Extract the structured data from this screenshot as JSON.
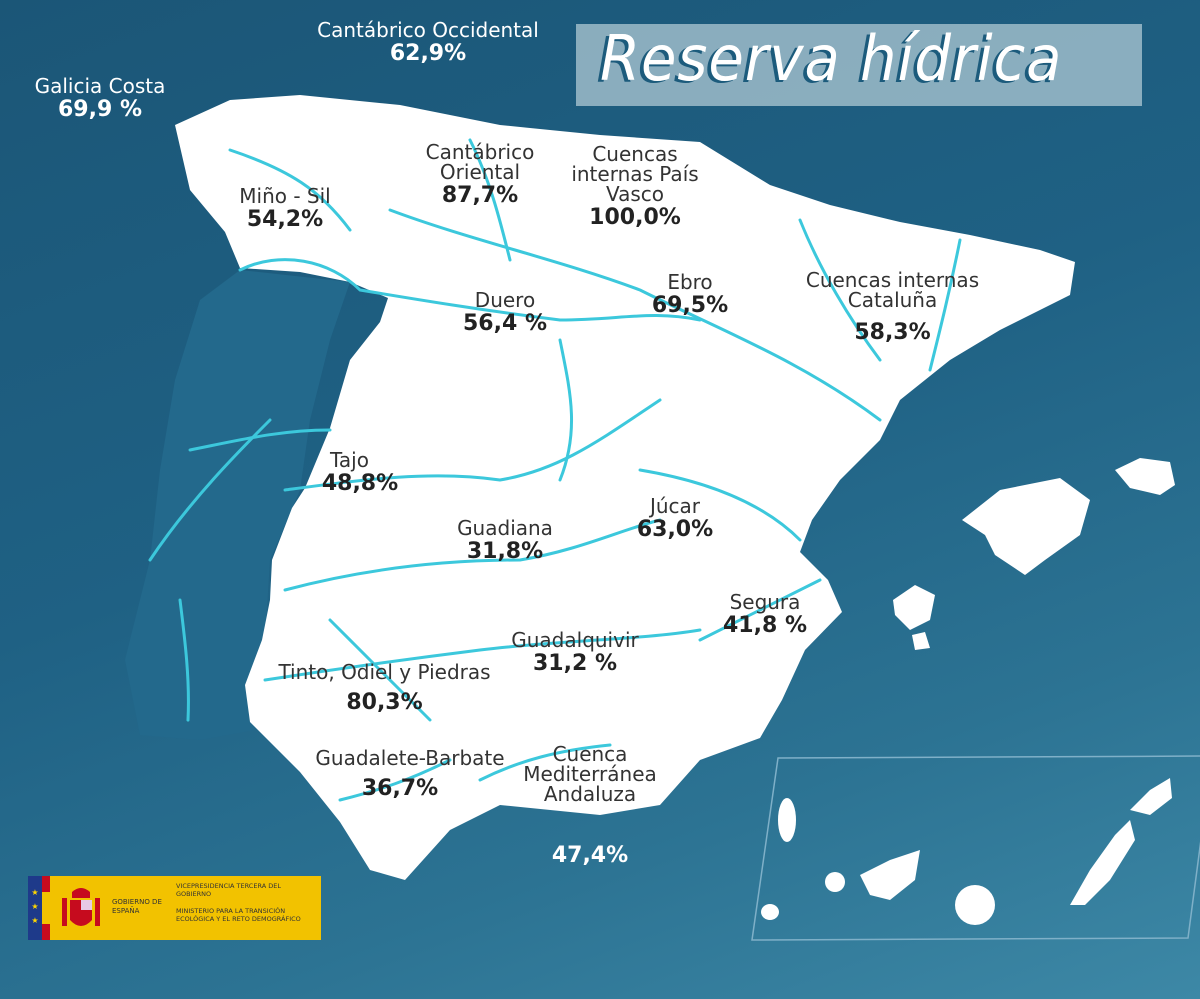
{
  "title": "Reserva hídrica",
  "colors": {
    "sea": "#1f6184",
    "land": "#ffffff",
    "rivers": "#3cc8dc",
    "portugal": "#23698c",
    "title_box": "#b4cdd7"
  },
  "basins": [
    {
      "name": "Galicia Costa",
      "value": "69,9 %"
    },
    {
      "name": "Cantábrico Occidental",
      "value": "62,9%"
    },
    {
      "name": "Miño - Sil",
      "value": "54,2%"
    },
    {
      "name": "Cantábrico Oriental",
      "value": "87,7%"
    },
    {
      "name": "Cuencas internas País Vasco",
      "value": "100,0%"
    },
    {
      "name": "Ebro",
      "value": "69,5%"
    },
    {
      "name": "Cuencas internas Cataluña",
      "value": "58,3%"
    },
    {
      "name": "Duero",
      "value": "56,4 %"
    },
    {
      "name": "Tajo",
      "value": "48,8%"
    },
    {
      "name": "Guadiana",
      "value": "31,8%"
    },
    {
      "name": "Júcar",
      "value": "63,0%"
    },
    {
      "name": "Segura",
      "value": "41,8 %"
    },
    {
      "name": "Guadalquivir",
      "value": "31,2 %"
    },
    {
      "name": "Tinto, Odiel y Piedras",
      "value": "80,3%"
    },
    {
      "name": "Guadalete-Barbate",
      "value": "36,7%"
    },
    {
      "name": "Cuenca Mediterránea Andaluza",
      "value": "47,4%"
    }
  ],
  "logo": {
    "gobierno": "GOBIERNO DE ESPAÑA",
    "vicepresidencia": "VICEPRESIDENCIA TERCERA DEL GOBIERNO",
    "ministerio": "MINISTERIO PARA LA TRANSICIÓN ECOLÓGICA Y EL RETO DEMOGRÁFICO"
  }
}
